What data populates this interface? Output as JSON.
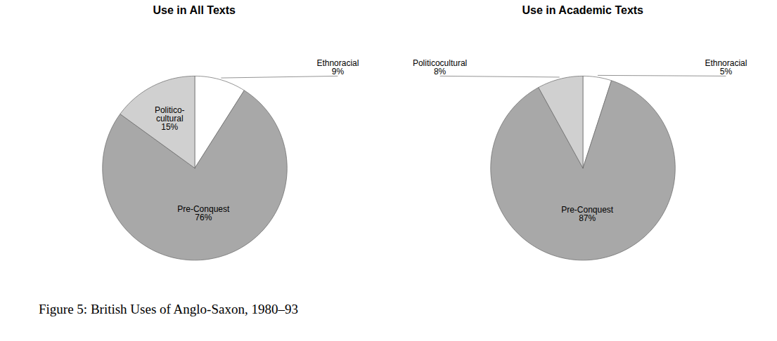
{
  "chart_data": [
    {
      "type": "pie",
      "title": "Use in All Texts",
      "categories": [
        "Ethnoracial",
        "Pre-Conquest",
        "Politico-\ncultural"
      ],
      "values": [
        9,
        76,
        15
      ],
      "value_labels": [
        "9%",
        "76%",
        "15%"
      ],
      "colors": [
        "#ffffff",
        "#a8a8a8",
        "#d0d0d0"
      ],
      "data_labels": true
    },
    {
      "type": "pie",
      "title": "Use in Academic Texts",
      "categories": [
        "Ethnoracial",
        "Pre-Conquest",
        "Politicocultural"
      ],
      "values": [
        5,
        87,
        8
      ],
      "value_labels": [
        "5%",
        "87%",
        "8%"
      ],
      "colors": [
        "#ffffff",
        "#a8a8a8",
        "#d0d0d0"
      ],
      "data_labels": true
    }
  ],
  "caption": "Figure 5: British Uses of Anglo-Saxon, 1980–93"
}
